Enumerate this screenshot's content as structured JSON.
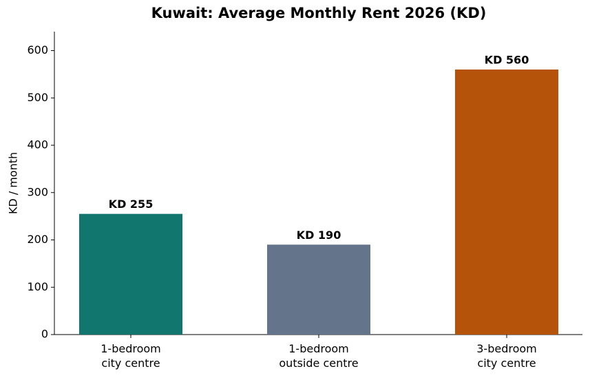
{
  "chart_data": {
    "type": "bar",
    "title": "Kuwait: Average Monthly Rent 2026 (KD)",
    "y_label": "KD / month",
    "categories": [
      "1-bedroom\ncity centre",
      "1-bedroom\noutside centre",
      "3-bedroom\ncity centre"
    ],
    "values": [
      255,
      190,
      560
    ],
    "value_labels": [
      "KD 255",
      "KD 190",
      "KD 560"
    ],
    "colors": [
      "#11776e",
      "#64748b",
      "#b45309"
    ],
    "ylim": [
      0,
      640
    ],
    "yticks": [
      0,
      100,
      200,
      300,
      400,
      500,
      600
    ],
    "grid": false
  }
}
